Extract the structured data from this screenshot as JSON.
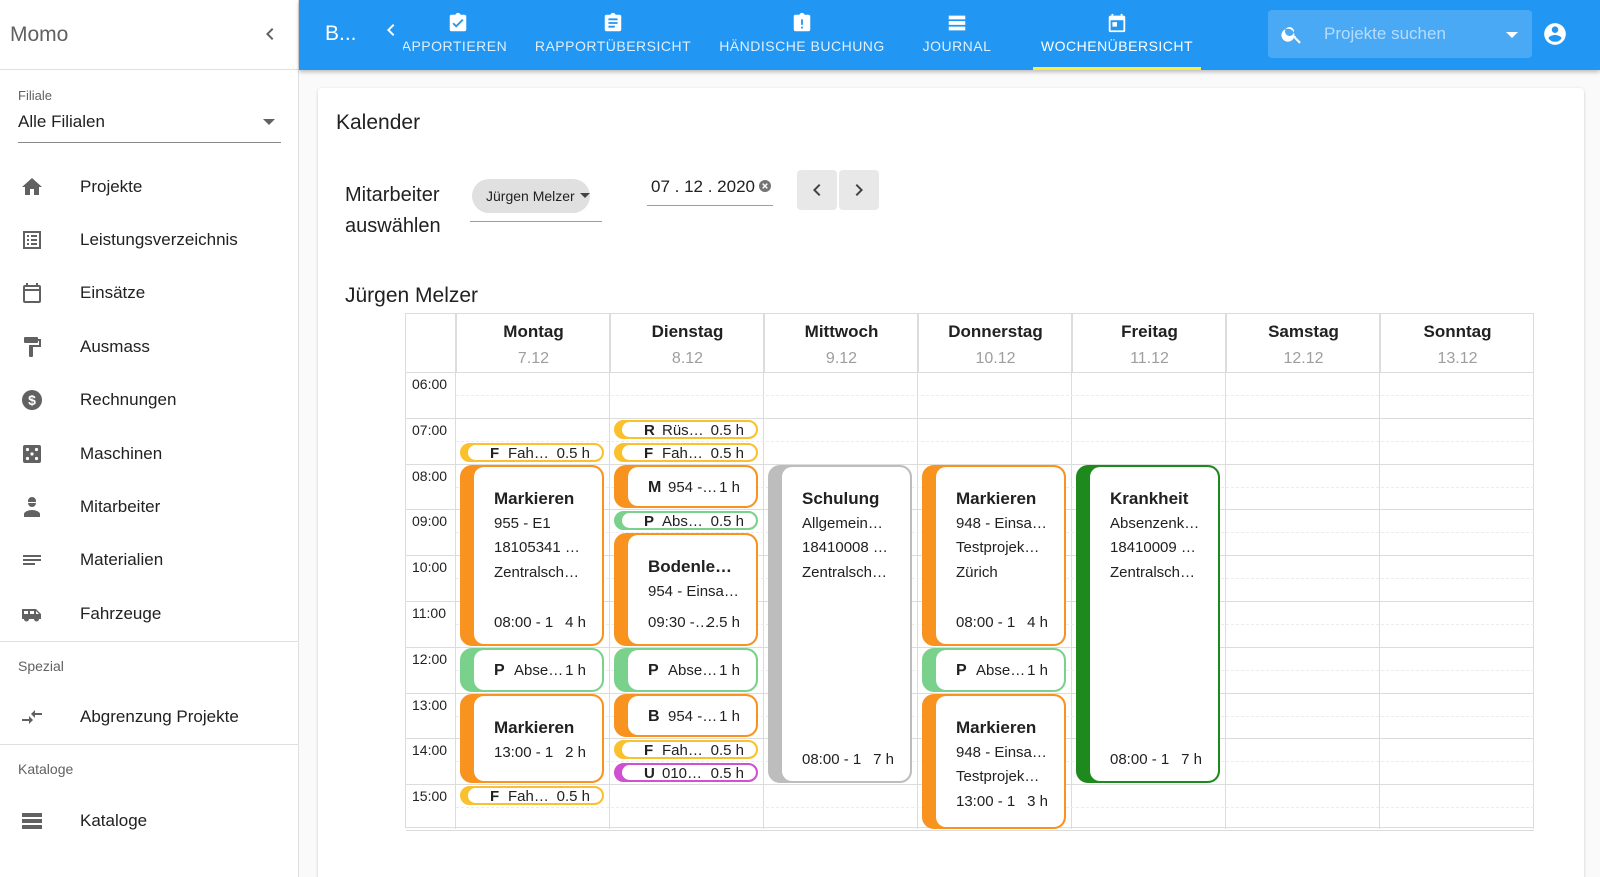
{
  "sidebar": {
    "title": "Momo",
    "filiale_label": "Filiale",
    "filiale_value": "Alle Filialen",
    "items": [
      {
        "label": "Projekte",
        "icon": "home-icon"
      },
      {
        "label": "Leistungsverzeichnis",
        "icon": "list-icon"
      },
      {
        "label": "Einsätze",
        "icon": "calendar-icon"
      },
      {
        "label": "Ausmass",
        "icon": "paint-roller-icon"
      },
      {
        "label": "Rechnungen",
        "icon": "dollar-icon"
      },
      {
        "label": "Maschinen",
        "icon": "dice-icon"
      },
      {
        "label": "Mitarbeiter",
        "icon": "worker-icon"
      },
      {
        "label": "Materialien",
        "icon": "notes-icon"
      },
      {
        "label": "Fahrzeuge",
        "icon": "van-icon"
      }
    ],
    "section_spezial": "Spezial",
    "spezial_items": [
      {
        "label": "Abgrenzung Projekte",
        "icon": "compare-arrows-icon"
      }
    ],
    "section_kataloge": "Kataloge",
    "kataloge_items": [
      {
        "label": "Kataloge",
        "icon": "storage-icon"
      }
    ]
  },
  "topbar": {
    "title": "B...",
    "tabs": [
      {
        "label": "RAPPORTIEREN",
        "icon": "clipboard-check-icon"
      },
      {
        "label": "RAPPORTÜBERSICHT",
        "icon": "clipboard-text-icon"
      },
      {
        "label": "HÄNDISCHE BUCHUNG",
        "icon": "clipboard-alert-icon"
      },
      {
        "label": "JOURNAL",
        "icon": "table-icon"
      },
      {
        "label": "WOCHENÜBERSICHT",
        "icon": "calendar-today-icon"
      }
    ],
    "search_placeholder": "Projekte suchen"
  },
  "content": {
    "title": "Kalender",
    "mitarbeiter_label_1": "Mitarbeiter",
    "mitarbeiter_label_2": "auswählen",
    "employee": "Jürgen Melzer",
    "date": "07 . 12 . 2020",
    "employee_heading": "Jürgen Melzer"
  },
  "calendar": {
    "days": [
      {
        "name": "Montag",
        "date": "7.12"
      },
      {
        "name": "Dienstag",
        "date": "8.12"
      },
      {
        "name": "Mittwoch",
        "date": "9.12"
      },
      {
        "name": "Donnerstag",
        "date": "10.12"
      },
      {
        "name": "Freitag",
        "date": "11.12"
      },
      {
        "name": "Samstag",
        "date": "12.12"
      },
      {
        "name": "Sonntag",
        "date": "13.12"
      }
    ],
    "hours": [
      "06:00",
      "07:00",
      "08:00",
      "09:00",
      "10:00",
      "11:00",
      "12:00",
      "13:00",
      "14:00",
      "15:00"
    ],
    "colors": {
      "fahrt": "#fbc02d",
      "ruesten": "#fbc02d",
      "markieren": "#f7931e",
      "pause": "#79d18b",
      "schulung": "#bdbdbd",
      "krankheit": "#1e8a1e",
      "unterhalt": "#d14fd1"
    },
    "events": [
      {
        "day": 0,
        "kind": "pill",
        "start": 7.5,
        "end": 8.0,
        "color": "#fbc02d",
        "letter": "F",
        "text": "Fah…",
        "dur": "0.5 h"
      },
      {
        "day": 0,
        "kind": "box",
        "start": 8.0,
        "end": 12.0,
        "color": "#f7931e",
        "title": "Markieren",
        "lines": [
          "955 - E1",
          "18105341 …",
          "Zentralsch…"
        ],
        "from": "08:00 - 1…",
        "dur": "4 h"
      },
      {
        "day": 0,
        "kind": "mid",
        "start": 12.0,
        "end": 13.0,
        "color": "#79d18b",
        "letter": "P",
        "text": "Abse…",
        "dur": "1 h"
      },
      {
        "day": 0,
        "kind": "box",
        "start": 13.0,
        "end": 15.0,
        "color": "#f7931e",
        "title": "Markieren",
        "lines": [],
        "from": "13:00 - 1…",
        "dur": "2 h"
      },
      {
        "day": 0,
        "kind": "pill",
        "start": 15.0,
        "end": 15.5,
        "color": "#fbc02d",
        "letter": "F",
        "text": "Fah…",
        "dur": "0.5 h"
      },
      {
        "day": 1,
        "kind": "pill",
        "start": 7.0,
        "end": 7.5,
        "color": "#fbc02d",
        "letter": "R",
        "text": "Rüs…",
        "dur": "0.5 h"
      },
      {
        "day": 1,
        "kind": "pill",
        "start": 7.5,
        "end": 8.0,
        "color": "#fbc02d",
        "letter": "F",
        "text": "Fah…",
        "dur": "0.5 h"
      },
      {
        "day": 1,
        "kind": "mid",
        "start": 8.0,
        "end": 9.0,
        "color": "#f7931e",
        "letter": "M",
        "text": "954 -…",
        "dur": "1 h"
      },
      {
        "day": 1,
        "kind": "pill",
        "start": 9.0,
        "end": 9.5,
        "color": "#79d18b",
        "letter": "P",
        "text": "Abs…",
        "dur": "0.5 h"
      },
      {
        "day": 1,
        "kind": "box",
        "start": 9.5,
        "end": 12.0,
        "color": "#f7931e",
        "title": "Bodenle…",
        "lines": [
          "954 - Einsa…"
        ],
        "from": "09:30 -…",
        "dur": "2.5 h"
      },
      {
        "day": 1,
        "kind": "mid",
        "start": 12.0,
        "end": 13.0,
        "color": "#79d18b",
        "letter": "P",
        "text": "Abse…",
        "dur": "1 h"
      },
      {
        "day": 1,
        "kind": "mid",
        "start": 13.0,
        "end": 14.0,
        "color": "#f7931e",
        "letter": "B",
        "text": "954 -…",
        "dur": "1 h"
      },
      {
        "day": 1,
        "kind": "pill",
        "start": 14.0,
        "end": 14.5,
        "color": "#fbc02d",
        "letter": "F",
        "text": "Fah…",
        "dur": "0.5 h"
      },
      {
        "day": 1,
        "kind": "pill",
        "start": 14.5,
        "end": 15.0,
        "color": "#d14fd1",
        "letter": "U",
        "text": "010…",
        "dur": "0.5 h"
      },
      {
        "day": 2,
        "kind": "box",
        "start": 8.0,
        "end": 15.0,
        "color": "#bdbdbd",
        "title": "Schulung",
        "lines": [
          "Allgemein…",
          "18410008 …",
          "Zentralsch…"
        ],
        "from": "08:00 - 1…",
        "dur": "7 h"
      },
      {
        "day": 3,
        "kind": "box",
        "start": 8.0,
        "end": 12.0,
        "color": "#f7931e",
        "title": "Markieren",
        "lines": [
          "948 - Einsa…",
          "Testprojek…",
          "Zürich"
        ],
        "from": "08:00 - 1…",
        "dur": "4 h"
      },
      {
        "day": 3,
        "kind": "mid",
        "start": 12.0,
        "end": 13.0,
        "color": "#79d18b",
        "letter": "P",
        "text": "Abse…",
        "dur": "1 h"
      },
      {
        "day": 3,
        "kind": "box",
        "start": 13.0,
        "end": 16.0,
        "color": "#f7931e",
        "title": "Markieren",
        "lines": [
          "948 - Einsa…",
          "Testprojek…"
        ],
        "from": "13:00 - 1…",
        "dur": "3 h"
      },
      {
        "day": 4,
        "kind": "box",
        "start": 8.0,
        "end": 15.0,
        "color": "#1e8a1e",
        "title": "Krankheit",
        "lines": [
          "Absenzenk…",
          "18410009 …",
          "Zentralsch…"
        ],
        "from": "08:00 - 1…",
        "dur": "7 h"
      }
    ]
  }
}
